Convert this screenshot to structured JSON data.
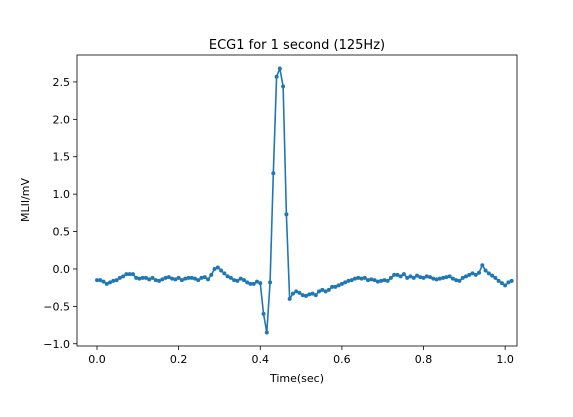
{
  "chart_data": {
    "type": "line",
    "title": "ECG1 for 1 second (125Hz)",
    "xlabel": "Time(sec)",
    "ylabel": "MLII/mV",
    "xlim": [
      -0.049,
      1.029
    ],
    "ylim": [
      -1.03,
      2.86
    ],
    "xticks": [
      0.0,
      0.2,
      0.4,
      0.6,
      0.8,
      1.0
    ],
    "xtick_labels": [
      "0.0",
      "0.2",
      "0.4",
      "0.6",
      "0.8",
      "1.0"
    ],
    "yticks": [
      -1.0,
      -0.5,
      0.0,
      0.5,
      1.0,
      1.5,
      2.0,
      2.5
    ],
    "ytick_labels": [
      "−1.0",
      "−0.5",
      "0.0",
      "0.5",
      "1.0",
      "1.5",
      "2.0",
      "2.5"
    ],
    "grid": false,
    "marker": "circle",
    "color": "#1f77b4",
    "series": [
      {
        "sample_rate_hz": 125,
        "x_start": 0.0,
        "x_step": 0.008,
        "values": [
          -0.15,
          -0.15,
          -0.17,
          -0.2,
          -0.18,
          -0.16,
          -0.15,
          -0.12,
          -0.1,
          -0.07,
          -0.07,
          -0.07,
          -0.12,
          -0.13,
          -0.12,
          -0.12,
          -0.14,
          -0.12,
          -0.15,
          -0.16,
          -0.14,
          -0.12,
          -0.11,
          -0.13,
          -0.14,
          -0.12,
          -0.15,
          -0.13,
          -0.12,
          -0.12,
          -0.13,
          -0.15,
          -0.12,
          -0.11,
          -0.14,
          -0.08,
          0.0,
          0.02,
          -0.02,
          -0.06,
          -0.1,
          -0.12,
          -0.15,
          -0.16,
          -0.13,
          -0.15,
          -0.18,
          -0.2,
          -0.2,
          -0.17,
          -0.19,
          -0.6,
          -0.85,
          -0.18,
          1.28,
          2.57,
          2.68,
          2.44,
          0.73,
          -0.4,
          -0.33,
          -0.3,
          -0.32,
          -0.35,
          -0.36,
          -0.34,
          -0.33,
          -0.35,
          -0.3,
          -0.28,
          -0.3,
          -0.28,
          -0.24,
          -0.24,
          -0.22,
          -0.2,
          -0.18,
          -0.16,
          -0.15,
          -0.13,
          -0.12,
          -0.13,
          -0.12,
          -0.15,
          -0.14,
          -0.15,
          -0.17,
          -0.16,
          -0.15,
          -0.16,
          -0.12,
          -0.08,
          -0.08,
          -0.1,
          -0.07,
          -0.12,
          -0.1,
          -0.12,
          -0.09,
          -0.11,
          -0.12,
          -0.1,
          -0.11,
          -0.13,
          -0.14,
          -0.13,
          -0.12,
          -0.11,
          -0.1,
          -0.13,
          -0.15,
          -0.16,
          -0.12,
          -0.1,
          -0.08,
          -0.06,
          -0.08,
          -0.05,
          0.05,
          -0.02,
          -0.06,
          -0.09,
          -0.12,
          -0.16,
          -0.19,
          -0.22,
          -0.18,
          -0.16
        ]
      }
    ]
  }
}
